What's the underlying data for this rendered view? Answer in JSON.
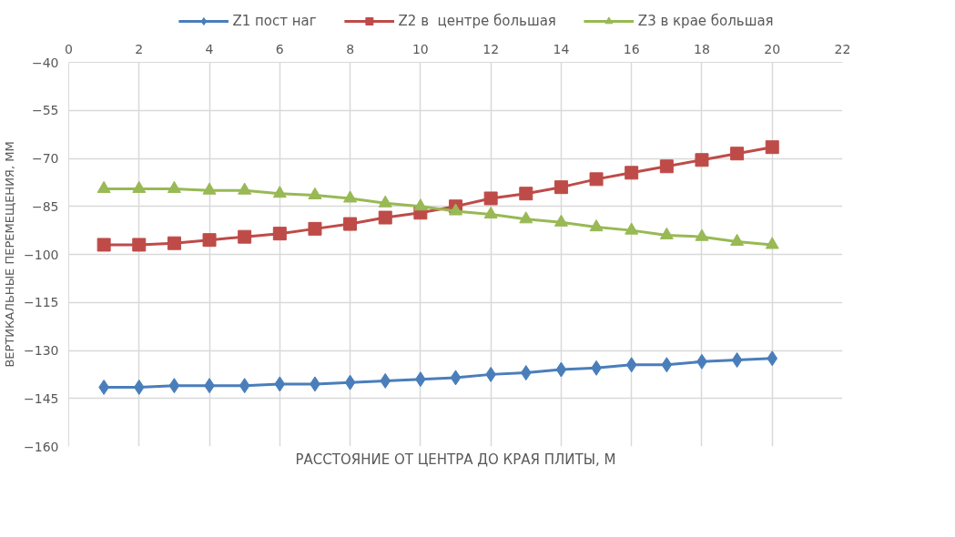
{
  "chart_data": {
    "type": "line",
    "xlabel": "РАССТОЯНИЕ ОТ ЦЕНТРА ДО КРАЯ ПЛИТЫ, М",
    "ylabel": "ВЕРТИКАЛЬНЫЕ ПЕРЕМЕЩЕНИЯ, ММ",
    "x": [
      1,
      2,
      3,
      4,
      5,
      6,
      7,
      8,
      9,
      10,
      11,
      12,
      13,
      14,
      15,
      16,
      17,
      18,
      19,
      20
    ],
    "series": [
      {
        "name": "Z1 пост наг",
        "color": "#4a7ebb",
        "marker": "diamond",
        "values": [
          -141.5,
          -141.5,
          -141,
          -141,
          -141,
          -140.5,
          -140.5,
          -140,
          -139.5,
          -139,
          -138.5,
          -137.5,
          -137,
          -136,
          -135.5,
          -134.5,
          -134.5,
          -133.5,
          -133,
          -132.5
        ]
      },
      {
        "name": "Z2 в  центре большая",
        "color": "#be4b48",
        "marker": "square",
        "values": [
          -97,
          -97,
          -96.5,
          -95.5,
          -94.5,
          -93.5,
          -92,
          -90.5,
          -88.5,
          -87,
          -85,
          -82.5,
          -81,
          -79,
          -76.5,
          -74.5,
          -72.5,
          -70.5,
          -68.5,
          -66.5
        ]
      },
      {
        "name": "Z3 в крае большая",
        "color": "#98b954",
        "marker": "triangle",
        "values": [
          -79.5,
          -79.5,
          -79.5,
          -80,
          -80,
          -81,
          -81.5,
          -82.5,
          -84,
          -85,
          -86.5,
          -87.5,
          -89,
          -90,
          -91.5,
          -92.5,
          -94,
          -94.5,
          -96,
          -97
        ]
      }
    ],
    "xlim": [
      0,
      22
    ],
    "xticks": [
      0,
      2,
      4,
      6,
      8,
      10,
      12,
      14,
      16,
      18,
      20,
      22
    ],
    "ylim": [
      -160,
      -40
    ],
    "yticks": [
      -160,
      -145,
      -130,
      -115,
      -100,
      -85,
      -70,
      -55,
      -40
    ],
    "grid": true,
    "legend": "top",
    "line_style": "solid"
  }
}
